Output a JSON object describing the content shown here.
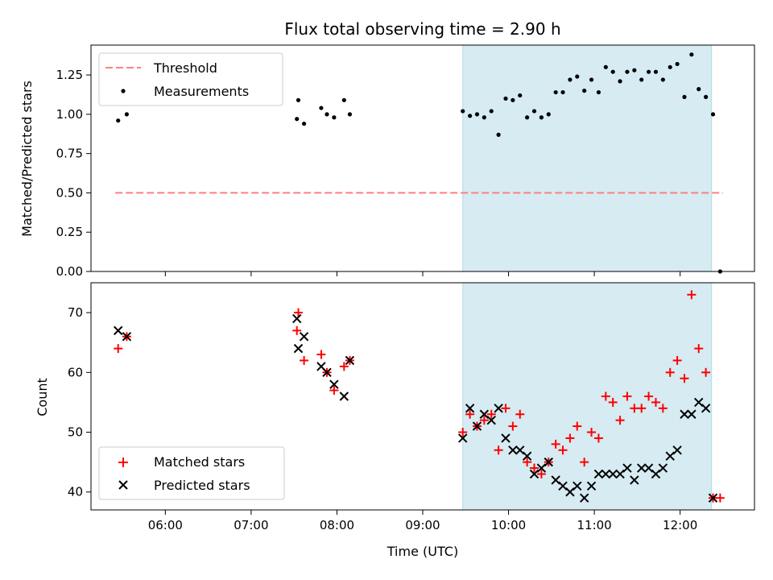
{
  "chart_data": [
    {
      "type": "scatter",
      "title": "Flux total observing time = 2.90 h",
      "xlabel": "",
      "ylabel": "Matched/Predicted stars",
      "ylim": [
        0,
        1.44
      ],
      "yticks": [
        "0.00",
        "0.25",
        "0.50",
        "0.75",
        "1.00",
        "1.25"
      ],
      "x_unit": "hours UTC",
      "xlim": [
        "05:08",
        "12:52"
      ],
      "highlight_span": [
        "09:28",
        "12:22"
      ],
      "threshold": {
        "name": "Threshold",
        "value": 0.5,
        "x": [
          "05:25",
          "12:30"
        ],
        "color": "#ff7f7f"
      },
      "legend": {
        "position": "upper-left",
        "entries": [
          "Threshold",
          "Measurements"
        ]
      },
      "series": [
        {
          "name": "Measurements",
          "color": "#000000",
          "marker": "dot",
          "points": [
            [
              "05:27",
              0.96
            ],
            [
              "05:33",
              1.0
            ],
            [
              "07:32",
              0.97
            ],
            [
              "07:33",
              1.09
            ],
            [
              "07:37",
              0.94
            ],
            [
              "07:49",
              1.04
            ],
            [
              "07:53",
              1.0
            ],
            [
              "07:58",
              0.98
            ],
            [
              "08:05",
              1.09
            ],
            [
              "08:09",
              1.0
            ],
            [
              "09:28",
              1.02
            ],
            [
              "09:33",
              0.99
            ],
            [
              "09:38",
              1.0
            ],
            [
              "09:43",
              0.98
            ],
            [
              "09:48",
              1.02
            ],
            [
              "09:53",
              0.87
            ],
            [
              "09:58",
              1.1
            ],
            [
              "10:03",
              1.09
            ],
            [
              "10:08",
              1.12
            ],
            [
              "10:13",
              0.98
            ],
            [
              "10:18",
              1.02
            ],
            [
              "10:23",
              0.98
            ],
            [
              "10:28",
              1.0
            ],
            [
              "10:33",
              1.14
            ],
            [
              "10:38",
              1.14
            ],
            [
              "10:43",
              1.22
            ],
            [
              "10:48",
              1.24
            ],
            [
              "10:53",
              1.15
            ],
            [
              "10:58",
              1.22
            ],
            [
              "11:03",
              1.14
            ],
            [
              "11:08",
              1.3
            ],
            [
              "11:13",
              1.27
            ],
            [
              "11:18",
              1.21
            ],
            [
              "11:23",
              1.27
            ],
            [
              "11:28",
              1.28
            ],
            [
              "11:33",
              1.22
            ],
            [
              "11:38",
              1.27
            ],
            [
              "11:43",
              1.27
            ],
            [
              "11:48",
              1.22
            ],
            [
              "11:53",
              1.3
            ],
            [
              "11:58",
              1.32
            ],
            [
              "12:03",
              1.11
            ],
            [
              "12:08",
              1.38
            ],
            [
              "12:13",
              1.16
            ],
            [
              "12:18",
              1.11
            ],
            [
              "12:23",
              1.0
            ],
            [
              "12:28",
              0.0
            ]
          ]
        }
      ]
    },
    {
      "type": "scatter",
      "title": "",
      "xlabel": "Time (UTC)",
      "ylabel": "Count",
      "ylim": [
        37,
        75
      ],
      "yticks": [
        "40",
        "50",
        "60",
        "70"
      ],
      "xticks": [
        "06:00",
        "07:00",
        "08:00",
        "09:00",
        "10:00",
        "11:00",
        "12:00"
      ],
      "x_unit": "hours UTC",
      "xlim": [
        "05:08",
        "12:52"
      ],
      "highlight_span": [
        "09:28",
        "12:22"
      ],
      "legend": {
        "position": "lower-left",
        "entries": [
          "Matched stars",
          "Predicted stars"
        ]
      },
      "series": [
        {
          "name": "Matched stars",
          "color": "#ff0000",
          "marker": "plus",
          "points": [
            [
              "05:27",
              64
            ],
            [
              "05:33",
              66
            ],
            [
              "07:32",
              67
            ],
            [
              "07:33",
              70
            ],
            [
              "07:37",
              62
            ],
            [
              "07:49",
              63
            ],
            [
              "07:53",
              60
            ],
            [
              "07:58",
              57
            ],
            [
              "08:05",
              61
            ],
            [
              "08:09",
              62
            ],
            [
              "09:28",
              50
            ],
            [
              "09:33",
              53
            ],
            [
              "09:38",
              51
            ],
            [
              "09:43",
              52
            ],
            [
              "09:48",
              53
            ],
            [
              "09:53",
              47
            ],
            [
              "09:58",
              54
            ],
            [
              "10:03",
              51
            ],
            [
              "10:08",
              53
            ],
            [
              "10:13",
              45
            ],
            [
              "10:18",
              44
            ],
            [
              "10:23",
              43
            ],
            [
              "10:28",
              45
            ],
            [
              "10:33",
              48
            ],
            [
              "10:38",
              47
            ],
            [
              "10:43",
              49
            ],
            [
              "10:48",
              51
            ],
            [
              "10:53",
              45
            ],
            [
              "10:58",
              50
            ],
            [
              "11:03",
              49
            ],
            [
              "11:08",
              56
            ],
            [
              "11:13",
              55
            ],
            [
              "11:18",
              52
            ],
            [
              "11:23",
              56
            ],
            [
              "11:28",
              54
            ],
            [
              "11:33",
              54
            ],
            [
              "11:38",
              56
            ],
            [
              "11:43",
              55
            ],
            [
              "11:48",
              54
            ],
            [
              "11:53",
              60
            ],
            [
              "11:58",
              62
            ],
            [
              "12:03",
              59
            ],
            [
              "12:08",
              73
            ],
            [
              "12:13",
              64
            ],
            [
              "12:18",
              60
            ],
            [
              "12:23",
              39
            ],
            [
              "12:28",
              39
            ]
          ]
        },
        {
          "name": "Predicted stars",
          "color": "#000000",
          "marker": "x",
          "points": [
            [
              "05:27",
              67
            ],
            [
              "05:33",
              66
            ],
            [
              "07:32",
              69
            ],
            [
              "07:33",
              64
            ],
            [
              "07:37",
              66
            ],
            [
              "07:49",
              61
            ],
            [
              "07:53",
              60
            ],
            [
              "07:58",
              58
            ],
            [
              "08:05",
              56
            ],
            [
              "08:09",
              62
            ],
            [
              "09:28",
              49
            ],
            [
              "09:33",
              54
            ],
            [
              "09:38",
              51
            ],
            [
              "09:43",
              53
            ],
            [
              "09:48",
              52
            ],
            [
              "09:53",
              54
            ],
            [
              "09:58",
              49
            ],
            [
              "10:03",
              47
            ],
            [
              "10:08",
              47
            ],
            [
              "10:13",
              46
            ],
            [
              "10:18",
              43
            ],
            [
              "10:23",
              44
            ],
            [
              "10:28",
              45
            ],
            [
              "10:33",
              42
            ],
            [
              "10:38",
              41
            ],
            [
              "10:43",
              40
            ],
            [
              "10:48",
              41
            ],
            [
              "10:53",
              39
            ],
            [
              "10:58",
              41
            ],
            [
              "11:03",
              43
            ],
            [
              "11:08",
              43
            ],
            [
              "11:13",
              43
            ],
            [
              "11:18",
              43
            ],
            [
              "11:23",
              44
            ],
            [
              "11:28",
              42
            ],
            [
              "11:33",
              44
            ],
            [
              "11:38",
              44
            ],
            [
              "11:43",
              43
            ],
            [
              "11:48",
              44
            ],
            [
              "11:53",
              46
            ],
            [
              "11:58",
              47
            ],
            [
              "12:03",
              53
            ],
            [
              "12:08",
              53
            ],
            [
              "12:13",
              55
            ],
            [
              "12:18",
              54
            ],
            [
              "12:23",
              39
            ]
          ]
        }
      ]
    }
  ]
}
